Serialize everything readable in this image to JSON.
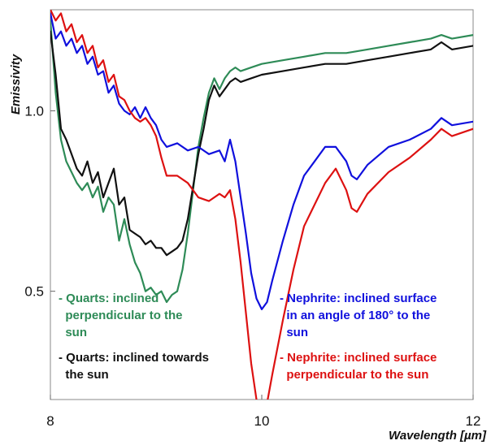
{
  "chart_data": {
    "type": "line",
    "xlabel": "Wavelength [µm]",
    "ylabel": "Emissivity",
    "xlim": [
      8,
      12
    ],
    "ylim": [
      0.2,
      1.28
    ],
    "x_ticks": [
      {
        "value": 8,
        "label": "8"
      },
      {
        "value": 10,
        "label": "10"
      },
      {
        "value": 12,
        "label": "12"
      }
    ],
    "y_ticks": [
      {
        "value": 0.5,
        "label": "0.5"
      },
      {
        "value": 1.0,
        "label": "1.0"
      }
    ],
    "grid": false,
    "series": [
      {
        "name": "- Quarts: inclined perpendicular to the sun",
        "color": "#2e8b57",
        "x": [
          8.0,
          8.05,
          8.1,
          8.15,
          8.2,
          8.25,
          8.3,
          8.35,
          8.4,
          8.45,
          8.5,
          8.55,
          8.6,
          8.65,
          8.7,
          8.75,
          8.8,
          8.85,
          8.9,
          8.95,
          9.0,
          9.05,
          9.1,
          9.15,
          9.2,
          9.25,
          9.3,
          9.35,
          9.4,
          9.45,
          9.5,
          9.55,
          9.6,
          9.65,
          9.7,
          9.75,
          9.8,
          9.9,
          10.0,
          10.2,
          10.4,
          10.6,
          10.8,
          11.0,
          11.2,
          11.4,
          11.6,
          11.7,
          11.8,
          12.0
        ],
        "y": [
          1.25,
          1.05,
          0.92,
          0.86,
          0.83,
          0.8,
          0.78,
          0.8,
          0.76,
          0.79,
          0.72,
          0.76,
          0.74,
          0.64,
          0.7,
          0.63,
          0.58,
          0.55,
          0.5,
          0.51,
          0.49,
          0.5,
          0.47,
          0.49,
          0.5,
          0.56,
          0.66,
          0.78,
          0.9,
          0.98,
          1.05,
          1.09,
          1.06,
          1.09,
          1.11,
          1.12,
          1.11,
          1.12,
          1.13,
          1.14,
          1.15,
          1.16,
          1.16,
          1.17,
          1.18,
          1.19,
          1.2,
          1.21,
          1.2,
          1.21
        ]
      },
      {
        "name": "- Quarts: inclined towards the sun",
        "color": "#111111",
        "x": [
          8.0,
          8.05,
          8.1,
          8.15,
          8.2,
          8.25,
          8.3,
          8.35,
          8.4,
          8.45,
          8.5,
          8.55,
          8.6,
          8.65,
          8.7,
          8.75,
          8.8,
          8.85,
          8.9,
          8.95,
          9.0,
          9.05,
          9.1,
          9.15,
          9.2,
          9.25,
          9.3,
          9.35,
          9.4,
          9.45,
          9.5,
          9.55,
          9.6,
          9.65,
          9.7,
          9.75,
          9.8,
          9.9,
          10.0,
          10.2,
          10.4,
          10.6,
          10.8,
          11.0,
          11.2,
          11.4,
          11.6,
          11.7,
          11.8,
          12.0
        ],
        "y": [
          1.22,
          1.1,
          0.95,
          0.92,
          0.88,
          0.84,
          0.82,
          0.86,
          0.8,
          0.83,
          0.76,
          0.8,
          0.84,
          0.74,
          0.76,
          0.67,
          0.66,
          0.65,
          0.63,
          0.64,
          0.62,
          0.62,
          0.6,
          0.61,
          0.62,
          0.64,
          0.7,
          0.79,
          0.88,
          0.95,
          1.03,
          1.07,
          1.04,
          1.06,
          1.08,
          1.09,
          1.08,
          1.09,
          1.1,
          1.11,
          1.12,
          1.13,
          1.13,
          1.14,
          1.15,
          1.16,
          1.17,
          1.19,
          1.17,
          1.18
        ]
      },
      {
        "name": "- Nephrite: inclined surface in an angle of 180° to the sun",
        "color": "#1010dd",
        "x": [
          8.0,
          8.05,
          8.1,
          8.15,
          8.2,
          8.25,
          8.3,
          8.35,
          8.4,
          8.45,
          8.5,
          8.55,
          8.6,
          8.65,
          8.7,
          8.75,
          8.8,
          8.85,
          8.9,
          8.95,
          9.0,
          9.05,
          9.1,
          9.2,
          9.3,
          9.4,
          9.5,
          9.6,
          9.65,
          9.7,
          9.75,
          9.8,
          9.85,
          9.9,
          9.95,
          10.0,
          10.05,
          10.1,
          10.2,
          10.3,
          10.4,
          10.5,
          10.6,
          10.7,
          10.8,
          10.85,
          10.9,
          11.0,
          11.2,
          11.4,
          11.6,
          11.7,
          11.8,
          12.0
        ],
        "y": [
          1.27,
          1.2,
          1.22,
          1.18,
          1.2,
          1.16,
          1.18,
          1.13,
          1.15,
          1.1,
          1.11,
          1.05,
          1.07,
          1.02,
          1.0,
          0.99,
          1.01,
          0.98,
          1.01,
          0.98,
          0.96,
          0.92,
          0.9,
          0.91,
          0.89,
          0.9,
          0.88,
          0.89,
          0.86,
          0.92,
          0.86,
          0.76,
          0.66,
          0.55,
          0.48,
          0.45,
          0.47,
          0.53,
          0.64,
          0.74,
          0.82,
          0.86,
          0.9,
          0.9,
          0.86,
          0.82,
          0.81,
          0.85,
          0.9,
          0.92,
          0.95,
          0.98,
          0.96,
          0.97
        ]
      },
      {
        "name": "- Nephrite: inclined surface perpendicular to the sun",
        "color": "#dd1111",
        "x": [
          8.0,
          8.05,
          8.1,
          8.15,
          8.2,
          8.25,
          8.3,
          8.35,
          8.4,
          8.45,
          8.5,
          8.55,
          8.6,
          8.65,
          8.7,
          8.75,
          8.8,
          8.85,
          8.9,
          8.95,
          9.0,
          9.05,
          9.1,
          9.2,
          9.3,
          9.4,
          9.5,
          9.6,
          9.65,
          9.7,
          9.75,
          9.8,
          9.85,
          9.9,
          9.95,
          10.0,
          10.05,
          10.1,
          10.2,
          10.3,
          10.4,
          10.5,
          10.6,
          10.7,
          10.8,
          10.85,
          10.9,
          11.0,
          11.2,
          11.4,
          11.6,
          11.7,
          11.8,
          12.0
        ],
        "y": [
          1.28,
          1.25,
          1.27,
          1.22,
          1.24,
          1.19,
          1.21,
          1.16,
          1.18,
          1.12,
          1.14,
          1.08,
          1.1,
          1.04,
          1.03,
          1.0,
          0.98,
          0.97,
          0.98,
          0.96,
          0.93,
          0.87,
          0.82,
          0.82,
          0.8,
          0.76,
          0.75,
          0.77,
          0.76,
          0.78,
          0.7,
          0.58,
          0.44,
          0.3,
          0.2,
          0.16,
          0.19,
          0.27,
          0.42,
          0.56,
          0.68,
          0.74,
          0.8,
          0.84,
          0.78,
          0.73,
          0.72,
          0.77,
          0.83,
          0.87,
          0.92,
          0.95,
          0.93,
          0.95
        ]
      }
    ]
  },
  "legend": {
    "quarts_perpendicular": "- Quarts: inclined\n  perpendicular to the\n  sun",
    "quarts_towards": "- Quarts: inclined towards\n  the sun",
    "nephrite_180": "- Nephrite: inclined surface\n  in an angle of 180° to the\n  sun",
    "nephrite_perpendicular": "- Nephrite: inclined surface\n  perpendicular to the sun"
  }
}
